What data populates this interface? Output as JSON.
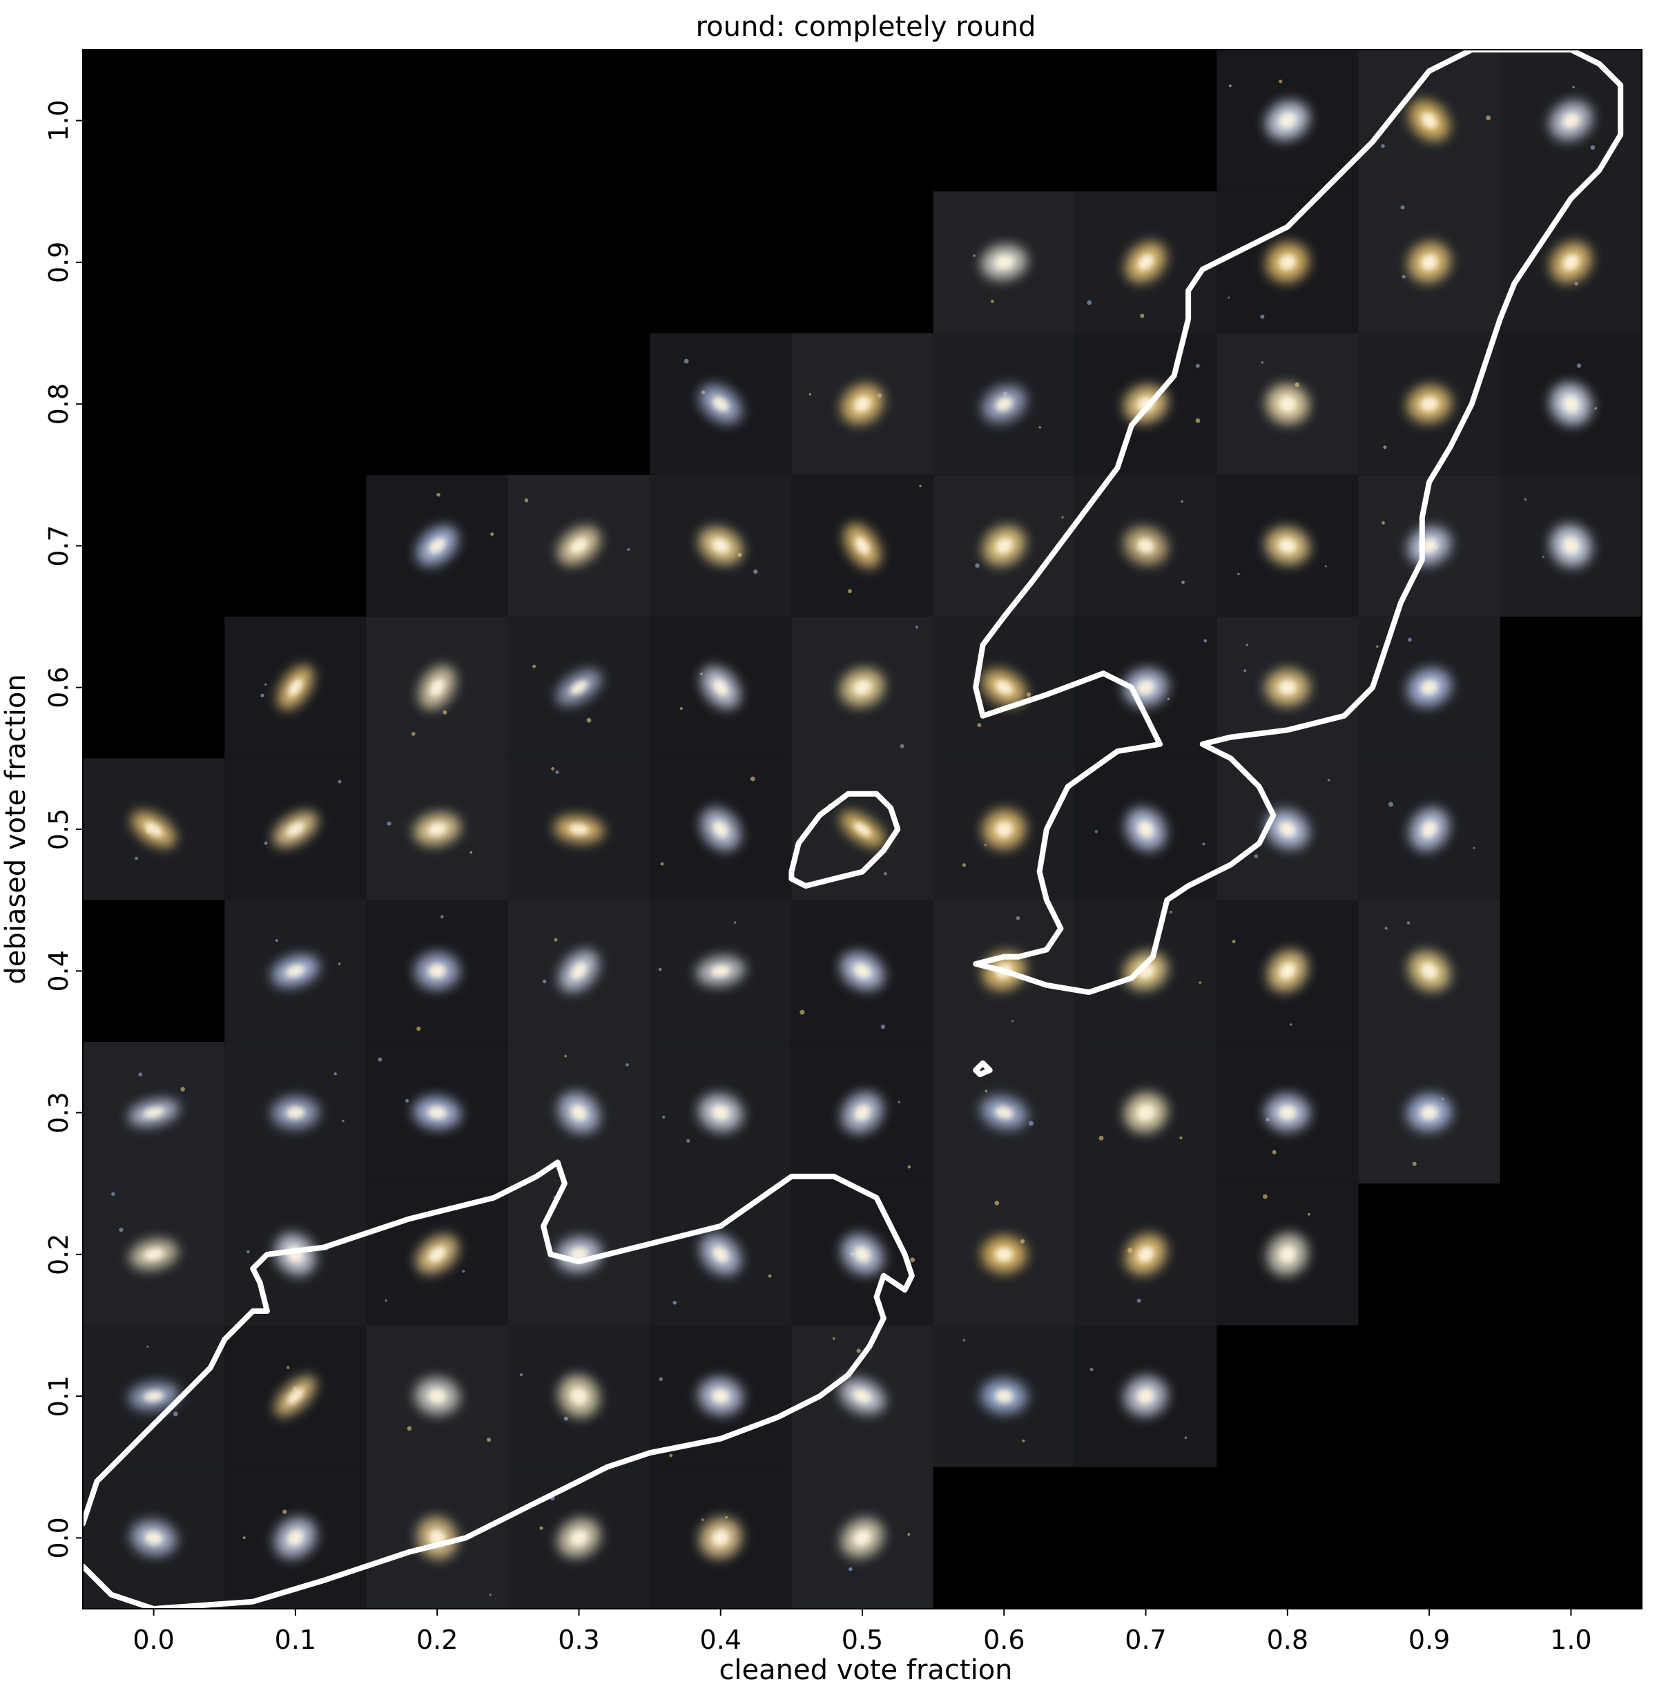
{
  "chart_data": {
    "type": "image-grid",
    "title": "round: completely round",
    "xlabel": "cleaned vote fraction",
    "ylabel": "debiased vote fraction",
    "xlim": [
      -0.05,
      1.05
    ],
    "ylim": [
      -0.05,
      1.05
    ],
    "xticks": [
      "0.0",
      "0.1",
      "0.2",
      "0.3",
      "0.4",
      "0.5",
      "0.6",
      "0.7",
      "0.8",
      "0.9",
      "1.0"
    ],
    "yticks": [
      "0.0",
      "0.1",
      "0.2",
      "0.3",
      "0.4",
      "0.5",
      "0.6",
      "0.7",
      "0.8",
      "0.9",
      "1.0"
    ],
    "grid": false,
    "background_color": "#000000",
    "contour_color": "#ffffff",
    "cells": [
      {
        "x": 0.0,
        "y": 0.0,
        "c": "#b8c4e0",
        "ecc": 0.3
      },
      {
        "x": 0.1,
        "y": 0.0,
        "c": "#c8d2ea",
        "ecc": 0.2
      },
      {
        "x": 0.2,
        "y": 0.0,
        "c": "#e8cc90",
        "ecc": 0.1
      },
      {
        "x": 0.3,
        "y": 0.0,
        "c": "#e6dcc0",
        "ecc": 0.2
      },
      {
        "x": 0.4,
        "y": 0.0,
        "c": "#f0d49a",
        "ecc": 0.1
      },
      {
        "x": 0.5,
        "y": 0.0,
        "c": "#e6dcc0",
        "ecc": 0.2
      },
      {
        "x": 0.0,
        "y": 0.1,
        "c": "#a8b8d8",
        "ecc": 0.6
      },
      {
        "x": 0.1,
        "y": 0.1,
        "c": "#f0d08a",
        "ecc": 0.7
      },
      {
        "x": 0.2,
        "y": 0.1,
        "c": "#d8d8d0",
        "ecc": 0.2
      },
      {
        "x": 0.3,
        "y": 0.1,
        "c": "#e8ddb8",
        "ecc": 0.1
      },
      {
        "x": 0.4,
        "y": 0.1,
        "c": "#c6d0ea",
        "ecc": 0.2
      },
      {
        "x": 0.5,
        "y": 0.1,
        "c": "#d4dae8",
        "ecc": 0.4
      },
      {
        "x": 0.6,
        "y": 0.1,
        "c": "#a8bce2",
        "ecc": 0.3
      },
      {
        "x": 0.7,
        "y": 0.1,
        "c": "#d0d6e6",
        "ecc": 0.1
      },
      {
        "x": 0.0,
        "y": 0.2,
        "c": "#e2d6b8",
        "ecc": 0.5
      },
      {
        "x": 0.1,
        "y": 0.2,
        "c": "#d8ddea",
        "ecc": 0.2
      },
      {
        "x": 0.2,
        "y": 0.2,
        "c": "#f0d28e",
        "ecc": 0.4
      },
      {
        "x": 0.3,
        "y": 0.2,
        "c": "#ccd4ea",
        "ecc": 0.3
      },
      {
        "x": 0.4,
        "y": 0.2,
        "c": "#c2ceea",
        "ecc": 0.3
      },
      {
        "x": 0.5,
        "y": 0.2,
        "c": "#c2ceea",
        "ecc": 0.2
      },
      {
        "x": 0.6,
        "y": 0.2,
        "c": "#f2c86a",
        "ecc": 0.2
      },
      {
        "x": 0.7,
        "y": 0.2,
        "c": "#f2cc7a",
        "ecc": 0.2
      },
      {
        "x": 0.8,
        "y": 0.2,
        "c": "#e2dcc8",
        "ecc": 0.1
      },
      {
        "x": 0.0,
        "y": 0.3,
        "c": "#c8d2ea",
        "ecc": 0.7
      },
      {
        "x": 0.1,
        "y": 0.3,
        "c": "#a6b4d4",
        "ecc": 0.4
      },
      {
        "x": 0.2,
        "y": 0.3,
        "c": "#b8c8ee",
        "ecc": 0.4
      },
      {
        "x": 0.3,
        "y": 0.3,
        "c": "#c0cce6",
        "ecc": 0.2
      },
      {
        "x": 0.4,
        "y": 0.3,
        "c": "#d4dae8",
        "ecc": 0.2
      },
      {
        "x": 0.5,
        "y": 0.3,
        "c": "#c2cce6",
        "ecc": 0.2
      },
      {
        "x": 0.6,
        "y": 0.3,
        "c": "#a8b8dc",
        "ecc": 0.4
      },
      {
        "x": 0.7,
        "y": 0.3,
        "c": "#f0e2b8",
        "ecc": 0.1
      },
      {
        "x": 0.8,
        "y": 0.3,
        "c": "#c4d0ec",
        "ecc": 0.2
      },
      {
        "x": 0.9,
        "y": 0.3,
        "c": "#b8c8ee",
        "ecc": 0.2
      },
      {
        "x": 0.1,
        "y": 0.4,
        "c": "#b8c8ee",
        "ecc": 0.5
      },
      {
        "x": 0.2,
        "y": 0.4,
        "c": "#b0bee0",
        "ecc": 0.2
      },
      {
        "x": 0.3,
        "y": 0.4,
        "c": "#cfd7ea",
        "ecc": 0.4
      },
      {
        "x": 0.4,
        "y": 0.4,
        "c": "#cfd2d8",
        "ecc": 0.5
      },
      {
        "x": 0.5,
        "y": 0.4,
        "c": "#c6d2f0",
        "ecc": 0.3
      },
      {
        "x": 0.6,
        "y": 0.4,
        "c": "#f2cc7a",
        "ecc": 0.2
      },
      {
        "x": 0.7,
        "y": 0.4,
        "c": "#f2d892",
        "ecc": 0.2
      },
      {
        "x": 0.8,
        "y": 0.4,
        "c": "#f0d48e",
        "ecc": 0.2
      },
      {
        "x": 0.9,
        "y": 0.4,
        "c": "#f0d890",
        "ecc": 0.2
      },
      {
        "x": 0.0,
        "y": 0.5,
        "c": "#f2cc7a",
        "ecc": 0.6
      },
      {
        "x": 0.1,
        "y": 0.5,
        "c": "#f2d696",
        "ecc": 0.6
      },
      {
        "x": 0.2,
        "y": 0.5,
        "c": "#f0d89e",
        "ecc": 0.4
      },
      {
        "x": 0.3,
        "y": 0.5,
        "c": "#f0c878",
        "ecc": 0.6
      },
      {
        "x": 0.4,
        "y": 0.5,
        "c": "#c6d0ea",
        "ecc": 0.3
      },
      {
        "x": 0.5,
        "y": 0.5,
        "c": "#f0c86e",
        "ecc": 0.7
      },
      {
        "x": 0.6,
        "y": 0.5,
        "c": "#f2cc7a",
        "ecc": 0.1
      },
      {
        "x": 0.7,
        "y": 0.5,
        "c": "#c8d4f2",
        "ecc": 0.2
      },
      {
        "x": 0.8,
        "y": 0.5,
        "c": "#c6d2f0",
        "ecc": 0.2
      },
      {
        "x": 0.9,
        "y": 0.5,
        "c": "#c6d2f0",
        "ecc": 0.2
      },
      {
        "x": 0.1,
        "y": 0.6,
        "c": "#f2cc7a",
        "ecc": 0.6
      },
      {
        "x": 0.2,
        "y": 0.6,
        "c": "#e6d6b2",
        "ecc": 0.4
      },
      {
        "x": 0.3,
        "y": 0.6,
        "c": "#a8b4d0",
        "ecc": 0.6
      },
      {
        "x": 0.4,
        "y": 0.6,
        "c": "#d2d8ea",
        "ecc": 0.4
      },
      {
        "x": 0.5,
        "y": 0.6,
        "c": "#f0da9a",
        "ecc": 0.2
      },
      {
        "x": 0.6,
        "y": 0.6,
        "c": "#f2cc7a",
        "ecc": 0.4
      },
      {
        "x": 0.7,
        "y": 0.6,
        "c": "#c6d2f0",
        "ecc": 0.2
      },
      {
        "x": 0.8,
        "y": 0.6,
        "c": "#f0d48e",
        "ecc": 0.2
      },
      {
        "x": 0.9,
        "y": 0.6,
        "c": "#b8c8ee",
        "ecc": 0.2
      },
      {
        "x": 0.2,
        "y": 0.7,
        "c": "#b8c8ee",
        "ecc": 0.4
      },
      {
        "x": 0.3,
        "y": 0.7,
        "c": "#f0dcae",
        "ecc": 0.4
      },
      {
        "x": 0.4,
        "y": 0.7,
        "c": "#f2d690",
        "ecc": 0.3
      },
      {
        "x": 0.5,
        "y": 0.7,
        "c": "#f2cc7a",
        "ecc": 0.5
      },
      {
        "x": 0.6,
        "y": 0.7,
        "c": "#f2d48a",
        "ecc": 0.2
      },
      {
        "x": 0.7,
        "y": 0.7,
        "c": "#d8c08a",
        "ecc": 0.2
      },
      {
        "x": 0.8,
        "y": 0.7,
        "c": "#f2d690",
        "ecc": 0.2
      },
      {
        "x": 0.9,
        "y": 0.7,
        "c": "#c8d2ea",
        "ecc": 0.2
      },
      {
        "x": 1.0,
        "y": 0.7,
        "c": "#dce4f6",
        "ecc": 0.1
      },
      {
        "x": 0.4,
        "y": 0.8,
        "c": "#a8b8dc",
        "ecc": 0.4
      },
      {
        "x": 0.5,
        "y": 0.8,
        "c": "#f2cc7a",
        "ecc": 0.2
      },
      {
        "x": 0.6,
        "y": 0.8,
        "c": "#a8b4d0",
        "ecc": 0.3
      },
      {
        "x": 0.7,
        "y": 0.8,
        "c": "#f2d28a",
        "ecc": 0.2
      },
      {
        "x": 0.8,
        "y": 0.8,
        "c": "#f4e2b0",
        "ecc": 0.1
      },
      {
        "x": 0.9,
        "y": 0.8,
        "c": "#f2cc7a",
        "ecc": 0.2
      },
      {
        "x": 1.0,
        "y": 0.8,
        "c": "#dce6fa",
        "ecc": 0.1
      },
      {
        "x": 0.6,
        "y": 0.9,
        "c": "#e4e2d6",
        "ecc": 0.3
      },
      {
        "x": 0.7,
        "y": 0.9,
        "c": "#f2cc7a",
        "ecc": 0.3
      },
      {
        "x": 0.8,
        "y": 0.9,
        "c": "#f0c86e",
        "ecc": 0.1
      },
      {
        "x": 0.9,
        "y": 0.9,
        "c": "#f2cc7a",
        "ecc": 0.1
      },
      {
        "x": 1.0,
        "y": 0.9,
        "c": "#f2cc7a",
        "ecc": 0.2
      },
      {
        "x": 0.8,
        "y": 1.0,
        "c": "#d8e2f6",
        "ecc": 0.2
      },
      {
        "x": 0.9,
        "y": 1.0,
        "c": "#f0c86e",
        "ecc": 0.3
      },
      {
        "x": 1.0,
        "y": 1.0,
        "c": "#d0d6e6",
        "ecc": 0.2
      }
    ],
    "contours": [
      [
        [
          -0.05,
          0.01
        ],
        [
          -0.04,
          0.04
        ],
        [
          -0.02,
          0.06
        ],
        [
          0.0,
          0.08
        ],
        [
          0.02,
          0.1
        ],
        [
          0.04,
          0.12
        ],
        [
          0.05,
          0.14
        ],
        [
          0.07,
          0.16
        ],
        [
          0.08,
          0.16
        ],
        [
          0.075,
          0.18
        ],
        [
          0.07,
          0.19
        ],
        [
          0.08,
          0.2
        ],
        [
          0.12,
          0.205
        ],
        [
          0.18,
          0.225
        ],
        [
          0.22,
          0.235
        ],
        [
          0.24,
          0.24
        ],
        [
          0.27,
          0.255
        ],
        [
          0.285,
          0.265
        ],
        [
          0.29,
          0.25
        ],
        [
          0.275,
          0.22
        ],
        [
          0.28,
          0.2
        ],
        [
          0.3,
          0.195
        ],
        [
          0.34,
          0.205
        ],
        [
          0.4,
          0.22
        ],
        [
          0.45,
          0.255
        ],
        [
          0.48,
          0.255
        ],
        [
          0.51,
          0.24
        ],
        [
          0.52,
          0.22
        ],
        [
          0.53,
          0.2
        ],
        [
          0.535,
          0.185
        ],
        [
          0.53,
          0.175
        ],
        [
          0.515,
          0.185
        ],
        [
          0.51,
          0.17
        ],
        [
          0.515,
          0.155
        ],
        [
          0.505,
          0.135
        ],
        [
          0.49,
          0.115
        ],
        [
          0.47,
          0.1
        ],
        [
          0.44,
          0.085
        ],
        [
          0.4,
          0.07
        ],
        [
          0.35,
          0.06
        ],
        [
          0.32,
          0.05
        ],
        [
          0.3,
          0.04
        ],
        [
          0.28,
          0.03
        ],
        [
          0.26,
          0.02
        ],
        [
          0.22,
          0.0
        ],
        [
          0.18,
          -0.01
        ],
        [
          0.12,
          -0.03
        ],
        [
          0.07,
          -0.045
        ],
        [
          0.0,
          -0.05
        ],
        [
          -0.03,
          -0.04
        ],
        [
          -0.05,
          -0.02
        ]
      ],
      [
        [
          0.45,
          0.47
        ],
        [
          0.455,
          0.49
        ],
        [
          0.47,
          0.51
        ],
        [
          0.49,
          0.525
        ],
        [
          0.51,
          0.525
        ],
        [
          0.52,
          0.515
        ],
        [
          0.525,
          0.5
        ],
        [
          0.515,
          0.485
        ],
        [
          0.5,
          0.47
        ],
        [
          0.48,
          0.465
        ],
        [
          0.46,
          0.46
        ],
        [
          0.45,
          0.465
        ],
        [
          0.45,
          0.47
        ]
      ],
      [
        [
          0.58,
          0.33
        ],
        [
          0.585,
          0.335
        ],
        [
          0.59,
          0.33
        ],
        [
          0.583,
          0.327
        ],
        [
          0.58,
          0.33
        ]
      ],
      [
        [
          0.58,
          0.405
        ],
        [
          0.6,
          0.41
        ],
        [
          0.61,
          0.41
        ],
        [
          0.63,
          0.415
        ],
        [
          0.64,
          0.43
        ],
        [
          0.63,
          0.45
        ],
        [
          0.625,
          0.47
        ],
        [
          0.63,
          0.5
        ],
        [
          0.645,
          0.53
        ],
        [
          0.68,
          0.555
        ],
        [
          0.71,
          0.56
        ],
        [
          0.705,
          0.57
        ],
        [
          0.69,
          0.6
        ],
        [
          0.67,
          0.61
        ],
        [
          0.63,
          0.595
        ],
        [
          0.6,
          0.585
        ],
        [
          0.585,
          0.58
        ],
        [
          0.58,
          0.6
        ],
        [
          0.585,
          0.63
        ],
        [
          0.6,
          0.65
        ],
        [
          0.62,
          0.675
        ],
        [
          0.65,
          0.715
        ],
        [
          0.68,
          0.755
        ],
        [
          0.69,
          0.785
        ],
        [
          0.72,
          0.82
        ],
        [
          0.73,
          0.86
        ],
        [
          0.73,
          0.88
        ],
        [
          0.74,
          0.895
        ],
        [
          0.77,
          0.91
        ],
        [
          0.8,
          0.925
        ],
        [
          0.83,
          0.955
        ],
        [
          0.86,
          0.985
        ],
        [
          0.88,
          1.01
        ],
        [
          0.9,
          1.035
        ],
        [
          0.93,
          1.05
        ],
        [
          0.97,
          1.05
        ],
        [
          1.0,
          1.05
        ],
        [
          1.02,
          1.04
        ],
        [
          1.035,
          1.025
        ],
        [
          1.035,
          0.99
        ],
        [
          1.02,
          0.965
        ],
        [
          1.0,
          0.945
        ],
        [
          0.98,
          0.915
        ],
        [
          0.96,
          0.885
        ],
        [
          0.95,
          0.86
        ],
        [
          0.94,
          0.83
        ],
        [
          0.93,
          0.8
        ],
        [
          0.915,
          0.77
        ],
        [
          0.9,
          0.745
        ],
        [
          0.895,
          0.72
        ],
        [
          0.895,
          0.69
        ],
        [
          0.88,
          0.66
        ],
        [
          0.87,
          0.63
        ],
        [
          0.86,
          0.6
        ],
        [
          0.84,
          0.58
        ],
        [
          0.8,
          0.57
        ],
        [
          0.76,
          0.565
        ],
        [
          0.74,
          0.56
        ],
        [
          0.76,
          0.55
        ],
        [
          0.78,
          0.53
        ],
        [
          0.79,
          0.51
        ],
        [
          0.78,
          0.49
        ],
        [
          0.76,
          0.475
        ],
        [
          0.73,
          0.46
        ],
        [
          0.715,
          0.45
        ],
        [
          0.71,
          0.43
        ],
        [
          0.705,
          0.41
        ],
        [
          0.69,
          0.395
        ],
        [
          0.66,
          0.385
        ],
        [
          0.63,
          0.39
        ],
        [
          0.6,
          0.4
        ],
        [
          0.58,
          0.405
        ]
      ]
    ]
  }
}
